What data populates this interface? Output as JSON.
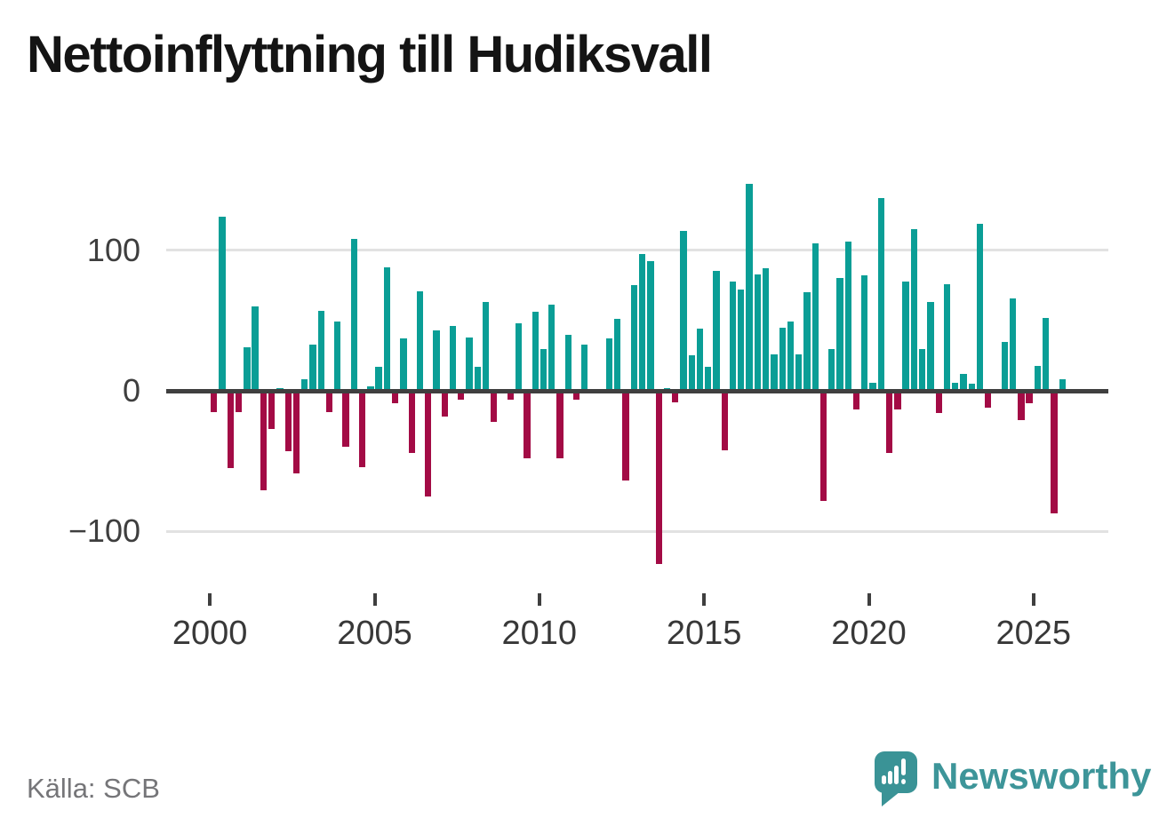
{
  "title": "Nettoinflyttning till Hudiksvall",
  "source": "Källa: SCB",
  "brand": {
    "name": "Newsworthy"
  },
  "colors": {
    "positive": "#0A9E96",
    "negative": "#A30B45",
    "axis_line": "#3F3F3F",
    "gridline": "#E2E2E2",
    "logo_teal": "#3A9396",
    "logo_text": "#3D9599",
    "background": "#FFFFFF"
  },
  "chart_data": {
    "type": "bar",
    "title": "Nettoinflyttning till Hudiksvall",
    "frequency": "quarterly",
    "start": "2000-Q1",
    "end": "2025-Q4",
    "values": [
      -15,
      124,
      -55,
      -15,
      31,
      60,
      -71,
      -27,
      2,
      -43,
      -59,
      8,
      33,
      57,
      -15,
      49,
      -40,
      108,
      -54,
      3,
      17,
      88,
      -9,
      37,
      -44,
      71,
      -75,
      43,
      -18,
      46,
      -6,
      38,
      17,
      63,
      -22,
      0,
      -6,
      48,
      -48,
      56,
      30,
      61,
      -48,
      40,
      -6,
      33,
      0,
      0,
      37,
      51,
      -64,
      75,
      97,
      92,
      -123,
      2,
      -8,
      114,
      25,
      44,
      17,
      85,
      -42,
      78,
      72,
      147,
      83,
      87,
      26,
      45,
      49,
      26,
      70,
      105,
      -78,
      30,
      80,
      106,
      -13,
      82,
      6,
      137,
      -44,
      -13,
      78,
      115,
      30,
      63,
      -16,
      76,
      6,
      12,
      5,
      119,
      -12,
      0,
      35,
      66,
      -21,
      -9,
      18,
      52,
      -87,
      8
    ],
    "xticks": [
      2000,
      2005,
      2010,
      2015,
      2020,
      2025
    ],
    "yticks": [
      100,
      0,
      -100
    ],
    "ytick_labels": [
      "100",
      "0",
      "−100"
    ],
    "ylim": [
      -130,
      155
    ],
    "grid": "horizontal",
    "legend": "none"
  }
}
